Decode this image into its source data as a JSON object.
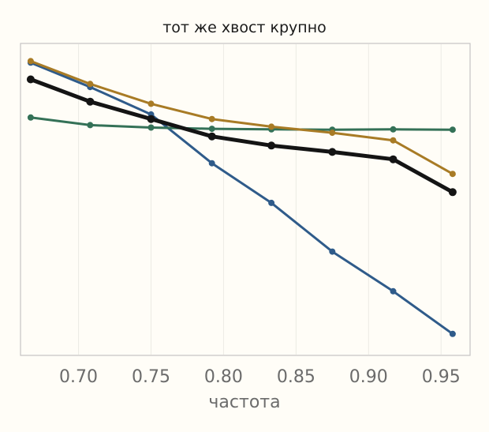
{
  "chart_data": {
    "type": "line",
    "title": "тот же хвост крупно",
    "xlabel": "частота",
    "ylabel": "",
    "xlim": [
      0.66,
      0.97
    ],
    "ylim": [
      0,
      1
    ],
    "xticks": [
      0.7,
      0.75,
      0.8,
      0.85,
      0.9,
      0.95
    ],
    "xtick_labels": [
      "0.70",
      "0.75",
      "0.80",
      "0.85",
      "0.90",
      "0.95"
    ],
    "yticks": [],
    "grid": "vertical",
    "legend": "none",
    "x": [
      0.667,
      0.708,
      0.75,
      0.792,
      0.833,
      0.875,
      0.917,
      0.958
    ],
    "series": [
      {
        "color": "#2f5b8a",
        "line_width": 3,
        "marker_r": 4,
        "values": [
          0.95,
          0.87,
          0.78,
          0.62,
          0.49,
          0.33,
          0.2,
          0.06
        ]
      },
      {
        "color": "#347157",
        "line_width": 3,
        "marker_r": 4,
        "values": [
          0.77,
          0.745,
          0.737,
          0.733,
          0.731,
          0.73,
          0.731,
          0.73
        ]
      },
      {
        "color": "#a87b25",
        "line_width": 3,
        "marker_r": 4,
        "values": [
          0.955,
          0.88,
          0.815,
          0.765,
          0.74,
          0.72,
          0.695,
          0.585
        ]
      },
      {
        "color": "#141414",
        "line_width": 5,
        "marker_r": 5,
        "values": [
          0.895,
          0.822,
          0.765,
          0.708,
          0.678,
          0.657,
          0.633,
          0.525
        ]
      }
    ]
  }
}
